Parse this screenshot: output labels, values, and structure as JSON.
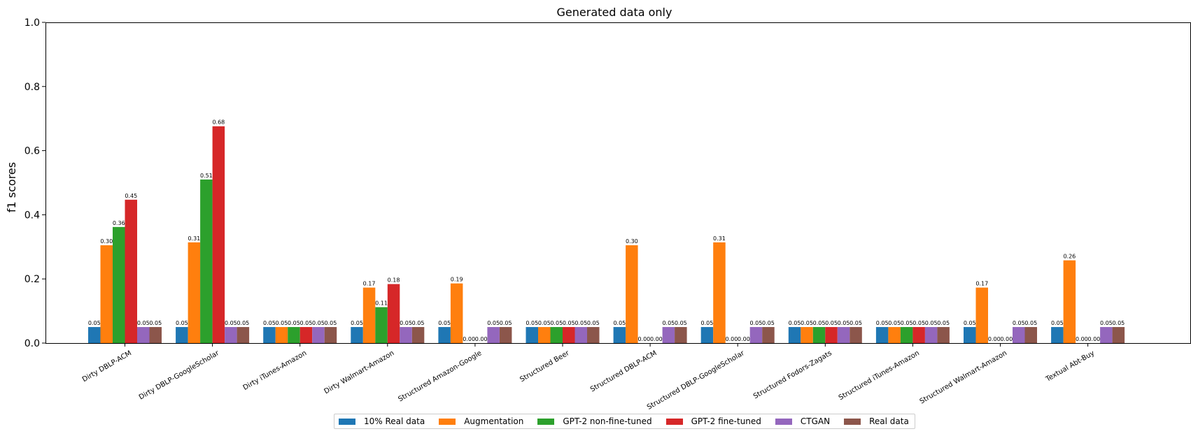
{
  "chart_data": {
    "type": "bar",
    "title": "Generated data only",
    "xlabel": "",
    "ylabel": "f1 scores",
    "ylim": [
      0,
      1.0
    ],
    "yticks": [
      "0.0",
      "0.2",
      "0.4",
      "0.6",
      "0.8",
      "1.0"
    ],
    "grid": false,
    "legend_position": "bottom-center",
    "categories": [
      "Dirty DBLP-ACM",
      "Dirty DBLP-GoogleScholar",
      "Dirty iTunes-Amazon",
      "Dirty Walmart-Amazon",
      "Structured Amazon-Google",
      "Structured Beer",
      "Structured DBLP-ACM",
      "Structured DBLP-GoogleScholar",
      "Structured Fodors-Zagats",
      "Structured iTunes-Amazon",
      "Structured Walmart-Amazon",
      "Textual Abt-Buy"
    ],
    "series": [
      {
        "name": "10% Real data",
        "color": "#1f77b4",
        "values": [
          0.05,
          0.05,
          0.05,
          0.05,
          0.05,
          0.05,
          0.05,
          0.05,
          0.05,
          0.05,
          0.05,
          0.05
        ],
        "labels": [
          "0.05",
          "0.05",
          "0.05",
          "0.05",
          "0.05",
          "0.05",
          "0.05",
          "0.05",
          "0.05",
          "0.05",
          "0.05",
          "0.05"
        ]
      },
      {
        "name": "Augmentation",
        "color": "#ff7f0e",
        "values": [
          0.305,
          0.314,
          0.05,
          0.173,
          0.186,
          0.05,
          0.305,
          0.314,
          0.05,
          0.05,
          0.173,
          0.258
        ],
        "labels": [
          "0.30",
          "0.31",
          "0.05",
          "0.17",
          "0.19",
          "0.05",
          "0.30",
          "0.31",
          "0.05",
          "0.05",
          "0.17",
          "0.26"
        ]
      },
      {
        "name": "GPT-2 non-fine-tuned",
        "color": "#2ca02c",
        "values": [
          0.362,
          0.51,
          0.05,
          0.112,
          0.0,
          0.05,
          0.0,
          0.0,
          0.05,
          0.05,
          0.0,
          0.0
        ],
        "labels": [
          "0.36",
          "0.51",
          "0.05",
          "0.11",
          "0.00",
          "0.05",
          "0.00",
          "0.00",
          "0.05",
          "0.05",
          "0.00",
          "0.00"
        ]
      },
      {
        "name": "GPT-2 fine-tuned",
        "color": "#d62728",
        "values": [
          0.447,
          0.676,
          0.05,
          0.184,
          0.0,
          0.05,
          0.0,
          0.0,
          0.05,
          0.05,
          0.0,
          0.0
        ],
        "labels": [
          "0.45",
          "0.68",
          "0.05",
          "0.18",
          "0.00",
          "0.05",
          "0.00",
          "0.00",
          "0.05",
          "0.05",
          "0.00",
          "0.00"
        ]
      },
      {
        "name": "CTGAN",
        "color": "#9467bd",
        "values": [
          0.05,
          0.05,
          0.05,
          0.05,
          0.05,
          0.05,
          0.05,
          0.05,
          0.05,
          0.05,
          0.05,
          0.05
        ],
        "labels": [
          "0.05",
          "0.05",
          "0.05",
          "0.05",
          "0.05",
          "0.05",
          "0.05",
          "0.05",
          "0.05",
          "0.05",
          "0.05",
          "0.05"
        ]
      },
      {
        "name": "Real data",
        "color": "#8c564b",
        "values": [
          0.05,
          0.05,
          0.05,
          0.05,
          0.05,
          0.05,
          0.05,
          0.05,
          0.05,
          0.05,
          0.05,
          0.05
        ],
        "labels": [
          "0.05",
          "0.05",
          "0.05",
          "0.05",
          "0.05",
          "0.05",
          "0.05",
          "0.05",
          "0.05",
          "0.05",
          "0.05",
          "0.05"
        ]
      }
    ]
  }
}
